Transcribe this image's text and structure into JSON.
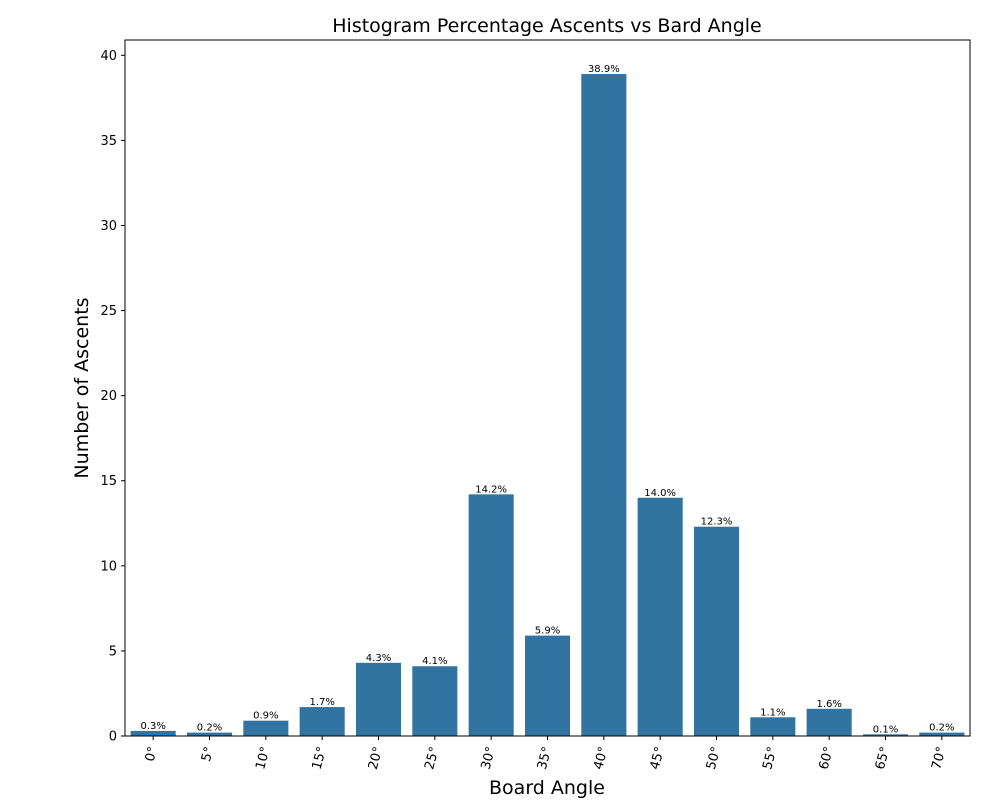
{
  "chart_data": {
    "type": "bar",
    "title": "Histogram Percentage Ascents vs Bard Angle",
    "xlabel": "Board Angle",
    "ylabel": "Number of Ascents",
    "categories": [
      "0°",
      "5°",
      "10°",
      "15°",
      "20°",
      "25°",
      "30°",
      "35°",
      "40°",
      "45°",
      "50°",
      "55°",
      "60°",
      "65°",
      "70°"
    ],
    "values": [
      0.3,
      0.2,
      0.9,
      1.7,
      4.3,
      4.1,
      14.2,
      5.9,
      38.9,
      14.0,
      12.3,
      1.1,
      1.6,
      0.1,
      0.2
    ],
    "data_labels": [
      "0.3%",
      "0.2%",
      "0.9%",
      "1.7%",
      "4.3%",
      "4.1%",
      "14.2%",
      "5.9%",
      "38.9%",
      "14.0%",
      "12.3%",
      "1.1%",
      "1.6%",
      "0.1%",
      "0.2%"
    ],
    "ylim": [
      0,
      40.9
    ],
    "yticks": [
      0,
      5,
      10,
      15,
      20,
      25,
      30,
      35,
      40
    ],
    "bar_color": "#3274a1",
    "grid": false,
    "xtick_rotation": "rotated"
  }
}
